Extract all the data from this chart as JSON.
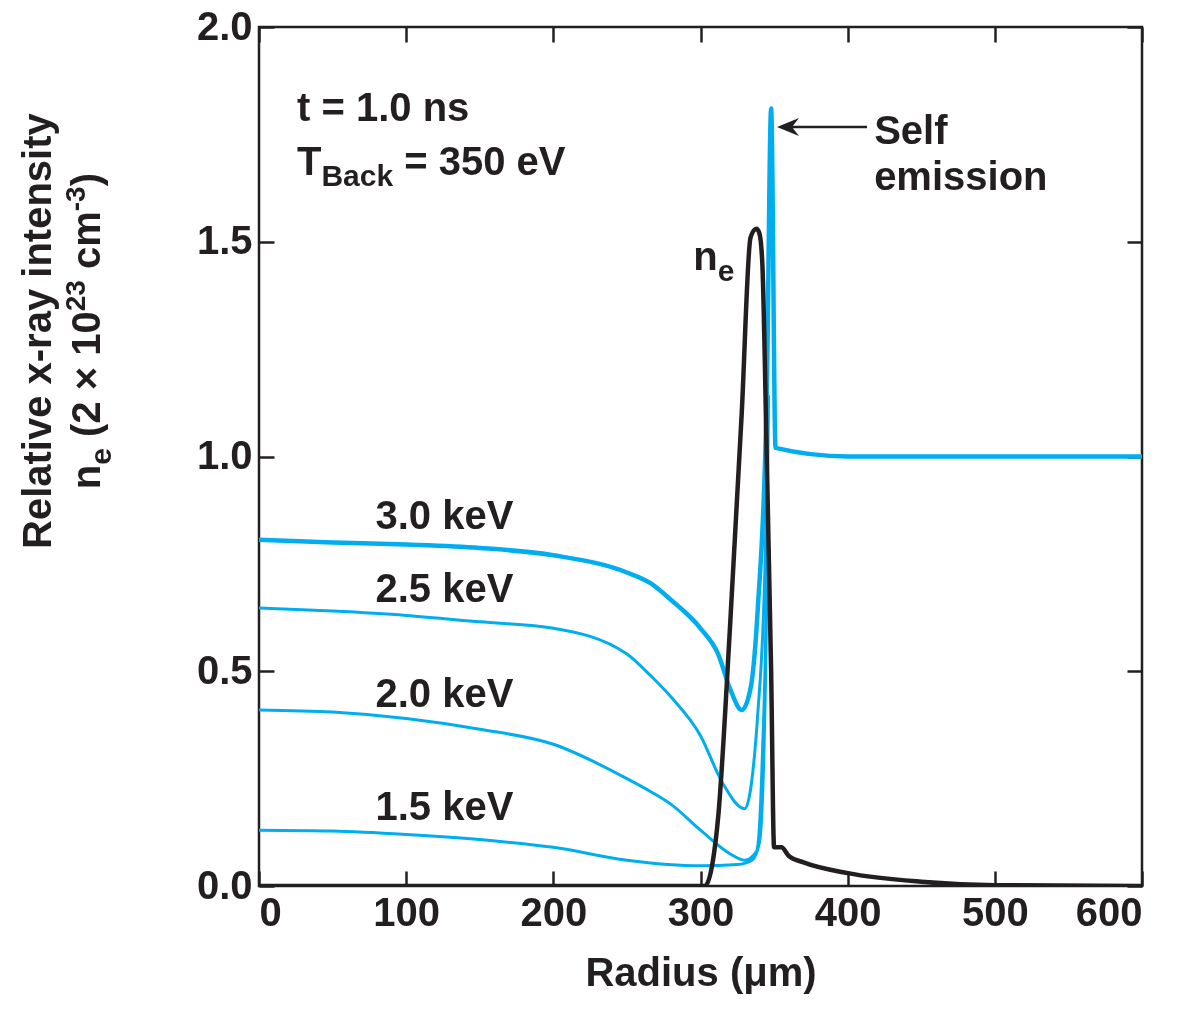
{
  "chart_data": {
    "type": "line",
    "xlabel": "Radius (μm)",
    "ylabel": "Relative x-ray intensity\nn$_{e}$ (2 × 10$^{23}$ cm$^{-3}$)",
    "xlim": [
      0,
      600
    ],
    "xticks": [
      0,
      100,
      200,
      300,
      400,
      500,
      600
    ],
    "ylim": [
      0,
      2.0
    ],
    "yticks": [
      {
        "value": 0,
        "label": "0.0"
      },
      {
        "value": 0.5,
        "label": "0.5"
      },
      {
        "value": 1,
        "label": "1.0"
      },
      {
        "value": 1.5,
        "label": "1.5"
      },
      {
        "value": 2,
        "label": "2.0"
      }
    ],
    "grid": false,
    "marker": "none",
    "line_style": "solid",
    "annotations": [
      "t = 1.0 ns",
      "T$_{Back}$ = 350 eV",
      {
        "text": "Self emission",
        "x": 348,
        "y": 1.81
      }
    ],
    "series": [
      {
        "name": "3.0 keV",
        "color": "#00aeef",
        "x": [
          0,
          50,
          100,
          150,
          200,
          250,
          266,
          280,
          300,
          312,
          320,
          328,
          334,
          339,
          345,
          348,
          351,
          400,
          450,
          600
        ],
        "values": [
          0.806,
          0.8,
          0.795,
          0.787,
          0.77,
          0.73,
          0.705,
          0.666,
          0.6,
          0.54,
          0.46,
          0.41,
          0.46,
          0.65,
          1.14,
          1.81,
          1.02,
          1.0,
          1.0,
          1.0
        ]
      },
      {
        "name": "2.5 keV",
        "color": "#00aeef",
        "x": [
          0,
          50,
          100,
          150,
          200,
          250,
          266,
          280,
          300,
          315,
          330,
          339,
          344,
          346
        ],
        "values": [
          0.647,
          0.64,
          0.63,
          0.615,
          0.6,
          0.54,
          0.49,
          0.44,
          0.35,
          0.24,
          0.18,
          0.405,
          0.77,
          1.14
        ]
      },
      {
        "name": "2.0 keV",
        "color": "#00aeef",
        "x": [
          0,
          50,
          100,
          150,
          200,
          250,
          266,
          280,
          300,
          320,
          330,
          338,
          342,
          345,
          346
        ],
        "values": [
          0.41,
          0.405,
          0.39,
          0.365,
          0.33,
          0.25,
          0.22,
          0.19,
          0.13,
          0.075,
          0.06,
          0.08,
          0.3,
          0.75,
          1.14
        ]
      },
      {
        "name": "1.5 keV",
        "color": "#00aeef",
        "x": [
          0,
          50,
          100,
          150,
          200,
          250,
          300,
          325,
          335,
          340,
          343,
          345,
          346
        ],
        "values": [
          0.13,
          0.128,
          0.12,
          0.108,
          0.09,
          0.06,
          0.047,
          0.05,
          0.06,
          0.1,
          0.3,
          0.7,
          1.14
        ]
      },
      {
        "name": "n$_{e}$",
        "color": "#231f20",
        "x": [
          0,
          303,
          308,
          312,
          320,
          328,
          334,
          338,
          340,
          342,
          345,
          348,
          350,
          355,
          360,
          370,
          400,
          450,
          500,
          600
        ],
        "values": [
          0,
          0,
          0.05,
          0.16,
          0.6,
          1.1,
          1.51,
          1.53,
          1.52,
          1.45,
          1.0,
          0.5,
          0.09,
          0.09,
          0.07,
          0.055,
          0.03,
          0.01,
          0.002,
          0
        ]
      }
    ]
  }
}
